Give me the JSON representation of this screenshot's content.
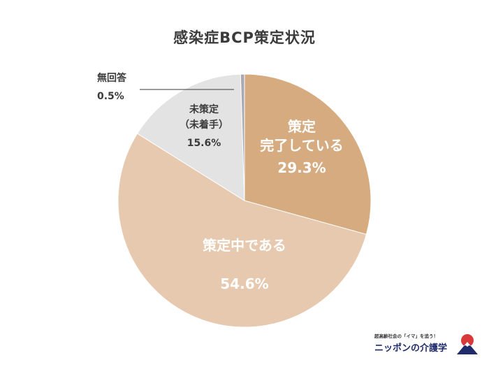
{
  "chart_data": {
    "type": "pie",
    "title": "感染症BCP策定状況",
    "slices": [
      {
        "label_lines": [
          "策定",
          "完了している"
        ],
        "value": 29.3,
        "value_text": "29.3%",
        "color": "#d6ab80",
        "label_color": "#ffffff"
      },
      {
        "label_lines": [
          "策定中である"
        ],
        "value": 54.6,
        "value_text": "54.6%",
        "color": "#e6c9ae",
        "label_color": "#ffffff"
      },
      {
        "label_lines": [
          "未策定",
          "（未着手）"
        ],
        "value": 15.6,
        "value_text": "15.6%",
        "color": "#e3e3e3",
        "label_color": "#3b3b3b"
      },
      {
        "label_lines": [
          "無回答"
        ],
        "value": 0.5,
        "value_text": "0.5%",
        "color": "#a9a9b4",
        "label_color": "#3b3b3b"
      }
    ],
    "start": "top",
    "direction": "clockwise"
  },
  "brand": {
    "tagline": "超高齢社会の「イマ」を追う！",
    "name": "ニッポンの介護学",
    "logo_icon": "mount-fuji-sun-icon"
  }
}
